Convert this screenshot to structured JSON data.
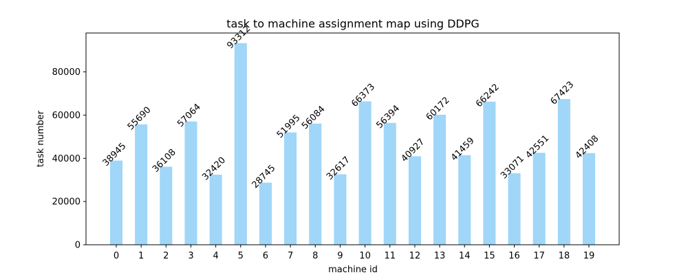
{
  "chart_data": {
    "type": "bar",
    "title": "task to machine assignment map using DDPG",
    "xlabel": "machine id",
    "ylabel": "task number",
    "categories": [
      "0",
      "1",
      "2",
      "3",
      "4",
      "5",
      "6",
      "7",
      "8",
      "9",
      "10",
      "11",
      "12",
      "13",
      "14",
      "15",
      "16",
      "17",
      "18",
      "19"
    ],
    "values": [
      38945,
      55690,
      36108,
      57064,
      32420,
      93312,
      28745,
      51995,
      56084,
      32617,
      66373,
      56394,
      40927,
      60172,
      41459,
      66242,
      33071,
      42551,
      67423,
      42408
    ],
    "data_labels": [
      "38945",
      "55690",
      "36108",
      "57064",
      "32420",
      "93312",
      "28745",
      "51995",
      "56084",
      "32617",
      "66373",
      "56394",
      "40927",
      "60172",
      "41459",
      "66242",
      "33071",
      "42551",
      "67423",
      "42408"
    ],
    "ylim": [
      0,
      98000
    ],
    "yticks": [
      0,
      20000,
      40000,
      60000,
      80000
    ],
    "ytick_labels": [
      "0",
      "20000",
      "40000",
      "60000",
      "80000"
    ],
    "grid": false,
    "bar_color": "#a0d6f8"
  }
}
